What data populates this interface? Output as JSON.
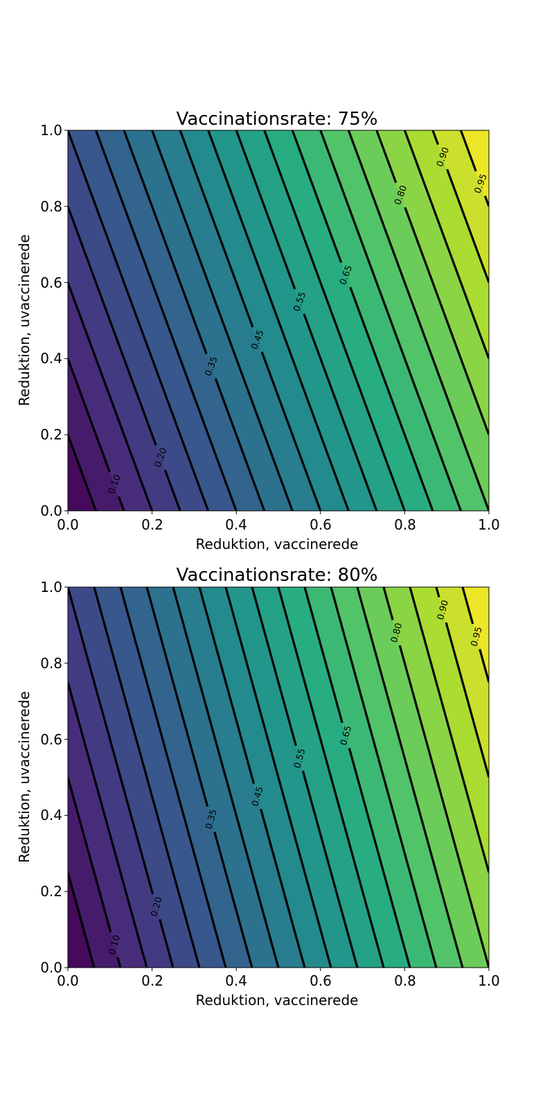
{
  "chart_data": [
    {
      "type": "contour",
      "title": "Vaccinationsrate: 75%",
      "vaccination_rate": 0.75,
      "xlabel": "Reduktion, vaccinerede",
      "ylabel": "Reduktion, uvaccinerede",
      "xlim": [
        0,
        1
      ],
      "ylim": [
        0,
        1
      ],
      "xticks": [
        "0.0",
        "0.2",
        "0.4",
        "0.6",
        "0.8",
        "1.0"
      ],
      "yticks": [
        "0.0",
        "0.2",
        "0.4",
        "0.6",
        "0.8",
        "1.0"
      ],
      "function": "z = rate * x + (1 - rate) * y",
      "colormap": "viridis",
      "filled_levels": [
        0.0,
        0.05,
        0.1,
        0.15,
        0.2,
        0.25,
        0.3,
        0.35,
        0.4,
        0.45,
        0.5,
        0.55,
        0.6,
        0.65,
        0.7,
        0.75,
        0.8,
        0.85,
        0.9,
        0.95,
        1.0
      ],
      "contour_levels": [
        0.05,
        0.1,
        0.15,
        0.2,
        0.25,
        0.3,
        0.35,
        0.4,
        0.45,
        0.5,
        0.55,
        0.6,
        0.65,
        0.7,
        0.75,
        0.8,
        0.85,
        0.9,
        0.95
      ],
      "labeled_levels": [
        {
          "text": "0.10",
          "value": 0.1,
          "x": 0.11
        },
        {
          "text": "0.20",
          "value": 0.2,
          "x": 0.22
        },
        {
          "text": "0.35",
          "value": 0.35,
          "x": 0.34
        },
        {
          "text": "0.45",
          "value": 0.45,
          "x": 0.45
        },
        {
          "text": "0.55",
          "value": 0.55,
          "x": 0.55
        },
        {
          "text": "0.65",
          "value": 0.65,
          "x": 0.66
        },
        {
          "text": "0.80",
          "value": 0.8,
          "x": 0.79
        },
        {
          "text": "0.90",
          "value": 0.9,
          "x": 0.89
        },
        {
          "text": "0.95",
          "value": 0.95,
          "x": 0.98
        }
      ]
    },
    {
      "type": "contour",
      "title": "Vaccinationsrate: 80%",
      "vaccination_rate": 0.8,
      "xlabel": "Reduktion, vaccinerede",
      "ylabel": "Reduktion, uvaccinerede",
      "xlim": [
        0,
        1
      ],
      "ylim": [
        0,
        1
      ],
      "xticks": [
        "0.0",
        "0.2",
        "0.4",
        "0.6",
        "0.8",
        "1.0"
      ],
      "yticks": [
        "0.0",
        "0.2",
        "0.4",
        "0.6",
        "0.8",
        "1.0"
      ],
      "function": "z = rate * x + (1 - rate) * y",
      "colormap": "viridis",
      "filled_levels": [
        0.0,
        0.05,
        0.1,
        0.15,
        0.2,
        0.25,
        0.3,
        0.35,
        0.4,
        0.45,
        0.5,
        0.55,
        0.6,
        0.65,
        0.7,
        0.75,
        0.8,
        0.85,
        0.9,
        0.95,
        1.0
      ],
      "contour_levels": [
        0.05,
        0.1,
        0.15,
        0.2,
        0.25,
        0.3,
        0.35,
        0.4,
        0.45,
        0.5,
        0.55,
        0.6,
        0.65,
        0.7,
        0.75,
        0.8,
        0.85,
        0.9,
        0.95
      ],
      "labeled_levels": [
        {
          "text": "0.10",
          "value": 0.1,
          "x": 0.11
        },
        {
          "text": "0.20",
          "value": 0.2,
          "x": 0.21
        },
        {
          "text": "0.35",
          "value": 0.35,
          "x": 0.34
        },
        {
          "text": "0.45",
          "value": 0.45,
          "x": 0.45
        },
        {
          "text": "0.55",
          "value": 0.55,
          "x": 0.55
        },
        {
          "text": "0.65",
          "value": 0.65,
          "x": 0.66
        },
        {
          "text": "0.80",
          "value": 0.8,
          "x": 0.78
        },
        {
          "text": "0.90",
          "value": 0.9,
          "x": 0.89
        },
        {
          "text": "0.95",
          "value": 0.95,
          "x": 0.97
        }
      ]
    }
  ]
}
